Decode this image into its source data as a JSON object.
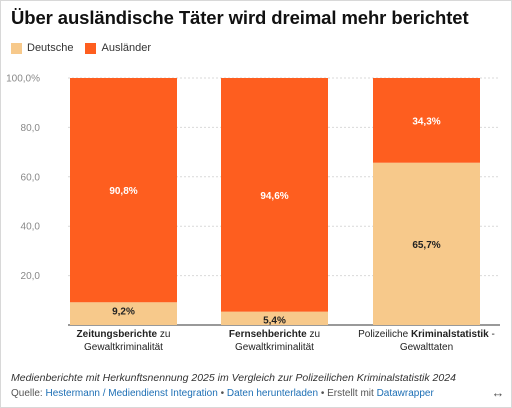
{
  "title": "Über ausländische Täter wird dreimal mehr berichtet",
  "legend": [
    {
      "label": "Deutsche",
      "color": "#f7c98b"
    },
    {
      "label": "Ausländer",
      "color": "#fe5e1f"
    }
  ],
  "chart_data": {
    "type": "bar",
    "stacked": true,
    "categories": [
      {
        "bold": "Zeitungsberichte",
        "rest": " zu",
        "line2": "Gewaltkriminalität",
        "bold_first": true
      },
      {
        "bold": "Fernsehberichte",
        "rest": " zu",
        "line2": "Gewaltkriminalität",
        "bold_first": true
      },
      {
        "pre": "Polizeiliche ",
        "bold": "Kriminalstatistik",
        "rest": " -",
        "line2": "Gewalttaten",
        "bold_first": false
      }
    ],
    "series": [
      {
        "name": "Deutsche",
        "values": [
          9.2,
          5.4,
          65.7
        ],
        "labels": [
          "9,2%",
          "5,4%",
          "65,7%"
        ],
        "color": "#f7c98b"
      },
      {
        "name": "Ausländer",
        "values": [
          90.8,
          94.6,
          34.3
        ],
        "labels": [
          "90,8%",
          "94,6%",
          "34,3%"
        ],
        "color": "#fe5e1f"
      }
    ],
    "yticks": [
      0,
      20,
      40,
      60,
      80,
      100
    ],
    "ytick_labels": [
      "",
      "20,0",
      "40,0",
      "60,0",
      "80,0",
      "100,0%"
    ],
    "ylim": [
      0,
      100
    ],
    "grid": true
  },
  "footer": {
    "note": "Medienberichte mit Herkunftsnennung 2025 im Vergleich zur Polizeilichen Kriminalstatistik 2024",
    "source_prefix": "Quelle: ",
    "source_link": "Hestermann / Mediendienst Integration",
    "sep1": " • ",
    "download_link": "Daten herunterladen",
    "sep2": " • Erstellt mit ",
    "made_with": "Datawrapper"
  },
  "expand_icon": "↔"
}
